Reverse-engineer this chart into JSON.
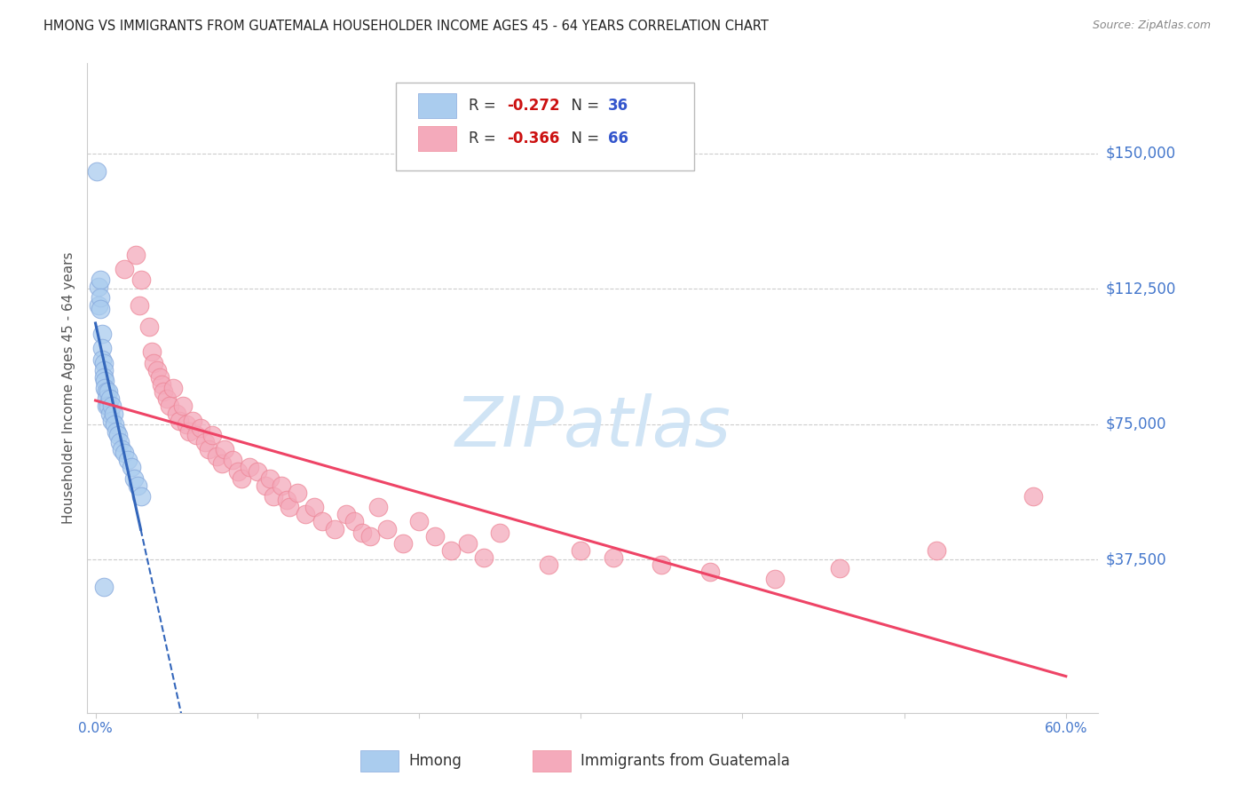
{
  "title": "HMONG VS IMMIGRANTS FROM GUATEMALA HOUSEHOLDER INCOME AGES 45 - 64 YEARS CORRELATION CHART",
  "source": "Source: ZipAtlas.com",
  "ylabel": "Householder Income Ages 45 - 64 years",
  "xlim": [
    -0.005,
    0.62
  ],
  "ylim": [
    -5000,
    175000
  ],
  "yticks": [
    37500,
    75000,
    112500,
    150000
  ],
  "ytick_labels": [
    "$37,500",
    "$75,000",
    "$112,500",
    "$150,000"
  ],
  "xtick_vals": [
    0.0,
    0.1,
    0.2,
    0.3,
    0.4,
    0.5,
    0.6
  ],
  "xtick_labels": [
    "0.0%",
    "",
    "",
    "",
    "",
    "",
    "60.0%"
  ],
  "hmong_R": -0.272,
  "hmong_N": 36,
  "guatemala_R": -0.366,
  "guatemala_N": 66,
  "hmong_color": "#aaccee",
  "hmong_edge_color": "#88aadd",
  "hmong_line_color": "#3366bb",
  "guatemala_color": "#f4aabb",
  "guatemala_edge_color": "#ee8899",
  "guatemala_line_color": "#ee4466",
  "watermark_color": "#d0e4f5",
  "background_color": "#ffffff",
  "grid_color": "#cccccc",
  "axis_label_color": "#4477cc",
  "title_color": "#222222",
  "source_color": "#888888",
  "ylabel_color": "#555555",
  "legend_R_color": "#cc1111",
  "legend_N_color": "#3355cc",
  "hmong_x": [
    0.001,
    0.002,
    0.002,
    0.003,
    0.003,
    0.003,
    0.004,
    0.004,
    0.004,
    0.005,
    0.005,
    0.005,
    0.006,
    0.006,
    0.007,
    0.007,
    0.007,
    0.008,
    0.008,
    0.009,
    0.009,
    0.01,
    0.01,
    0.011,
    0.012,
    0.013,
    0.014,
    0.015,
    0.016,
    0.018,
    0.02,
    0.022,
    0.024,
    0.026,
    0.028,
    0.005
  ],
  "hmong_y": [
    145000,
    113000,
    108000,
    115000,
    110000,
    107000,
    100000,
    96000,
    93000,
    92000,
    90000,
    88000,
    87000,
    85000,
    84000,
    82000,
    80000,
    84000,
    80000,
    82000,
    78000,
    80000,
    76000,
    78000,
    75000,
    73000,
    72000,
    70000,
    68000,
    67000,
    65000,
    63000,
    60000,
    58000,
    55000,
    30000
  ],
  "guatemala_x": [
    0.018,
    0.025,
    0.027,
    0.028,
    0.033,
    0.035,
    0.036,
    0.038,
    0.04,
    0.041,
    0.042,
    0.044,
    0.046,
    0.048,
    0.05,
    0.052,
    0.054,
    0.056,
    0.058,
    0.06,
    0.062,
    0.065,
    0.068,
    0.07,
    0.072,
    0.075,
    0.078,
    0.08,
    0.085,
    0.088,
    0.09,
    0.095,
    0.1,
    0.105,
    0.108,
    0.11,
    0.115,
    0.118,
    0.12,
    0.125,
    0.13,
    0.135,
    0.14,
    0.148,
    0.155,
    0.16,
    0.165,
    0.17,
    0.175,
    0.18,
    0.19,
    0.2,
    0.21,
    0.22,
    0.23,
    0.24,
    0.25,
    0.28,
    0.3,
    0.32,
    0.35,
    0.38,
    0.42,
    0.46,
    0.52,
    0.58
  ],
  "guatemala_y": [
    118000,
    122000,
    108000,
    115000,
    102000,
    95000,
    92000,
    90000,
    88000,
    86000,
    84000,
    82000,
    80000,
    85000,
    78000,
    76000,
    80000,
    75000,
    73000,
    76000,
    72000,
    74000,
    70000,
    68000,
    72000,
    66000,
    64000,
    68000,
    65000,
    62000,
    60000,
    63000,
    62000,
    58000,
    60000,
    55000,
    58000,
    54000,
    52000,
    56000,
    50000,
    52000,
    48000,
    46000,
    50000,
    48000,
    45000,
    44000,
    52000,
    46000,
    42000,
    48000,
    44000,
    40000,
    42000,
    38000,
    45000,
    36000,
    40000,
    38000,
    36000,
    34000,
    32000,
    35000,
    40000,
    55000
  ]
}
